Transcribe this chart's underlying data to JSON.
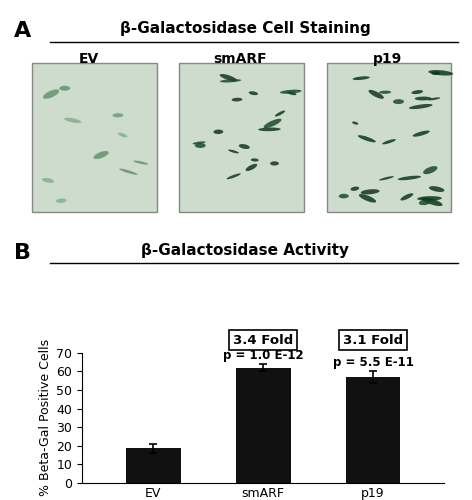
{
  "panel_A_title": "β-Galactosidase Cell Staining",
  "panel_B_title": "β-Galactosidase Activity",
  "panel_A_label": "A",
  "panel_B_label": "B",
  "image_labels": [
    "EV",
    "smARF",
    "p19"
  ],
  "bar_categories": [
    "EV",
    "smARF",
    "p19"
  ],
  "bar_values": [
    18.5,
    62.0,
    57.0
  ],
  "bar_errors": [
    2.5,
    2.0,
    3.0
  ],
  "bar_color": "#111111",
  "ylabel": "% Beta-Gal Positive Cells",
  "ylim": [
    0,
    70
  ],
  "yticks": [
    0,
    10,
    20,
    30,
    40,
    50,
    60,
    70
  ],
  "p_values": [
    "p = 1.0 E-12",
    "p = 5.5 E-11"
  ],
  "fold_labels": [
    "3.4 Fold",
    "3.1 Fold"
  ],
  "background_color": "#ffffff",
  "bar_width": 0.5,
  "title_fontsize": 11,
  "label_fontsize": 10,
  "tick_fontsize": 9,
  "pval_fontsize": 8.5,
  "fold_fontsize": 9.5,
  "img_bg_color": "#cddccd",
  "img_cell_colors_low": [
    "#5a9a6a",
    "#3a7a4a",
    "#2a6a3a"
  ],
  "img_cell_colors_high": [
    "#1a4a2a",
    "#0a3a1a",
    "#153525"
  ]
}
